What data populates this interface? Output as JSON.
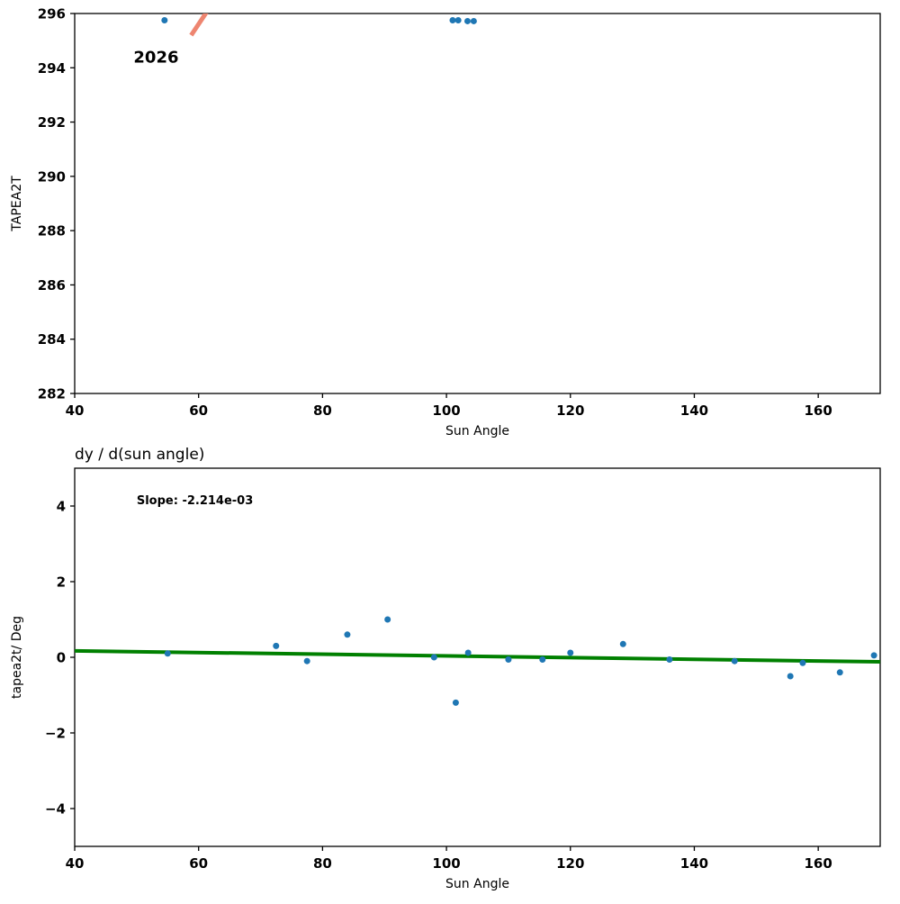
{
  "page": {
    "background": "#ffffff"
  },
  "chart_data": [
    {
      "name": "tapea2t-vs-sun-angle",
      "type": "scatter",
      "title": "",
      "xlabel": "Sun Angle",
      "ylabel": "TAPEA2T",
      "xlim": [
        40,
        170
      ],
      "ylim": [
        282,
        296
      ],
      "xticks": [
        40,
        60,
        80,
        100,
        120,
        140,
        160
      ],
      "yticks": [
        282,
        284,
        286,
        288,
        290,
        292,
        294,
        296
      ],
      "grid": false,
      "marker_color": "#1f77b4",
      "points": {
        "x": [
          54.5,
          101.0,
          101.9,
          103.4,
          104.4
        ],
        "y": [
          295.75,
          295.75,
          295.75,
          295.72,
          295.72
        ]
      },
      "trend_line": {
        "x1": 58.8,
        "y1": 295.2,
        "x2": 62.6,
        "y2": 296.5,
        "color": "#ee8570",
        "width": 5
      },
      "annotations": [
        {
          "text": "2026",
          "x": 49.5,
          "y": 294.2,
          "bold": true,
          "size": 18
        }
      ]
    },
    {
      "name": "derivative",
      "type": "scatter",
      "title": "dy / d(sun angle)",
      "xlabel": "Sun Angle",
      "ylabel": "tapea2t/ Deg",
      "xlim": [
        40,
        170
      ],
      "ylim": [
        -5,
        5
      ],
      "xticks": [
        40,
        60,
        80,
        100,
        120,
        140,
        160
      ],
      "yticks": [
        -4,
        -2,
        0,
        2,
        4
      ],
      "grid": false,
      "marker_color": "#1f77b4",
      "points": {
        "x": [
          55,
          72.5,
          77.5,
          84,
          90.5,
          98,
          101.5,
          103.5,
          110,
          115.5,
          120,
          128.5,
          136,
          146.5,
          155.5,
          157.5,
          163.5,
          169
        ],
        "y": [
          0.1,
          0.3,
          -0.1,
          0.6,
          1.0,
          0.0,
          -1.2,
          0.12,
          -0.06,
          -0.06,
          0.12,
          0.35,
          -0.06,
          -0.1,
          -0.5,
          -0.15,
          -0.4,
          0.05
        ]
      },
      "trend_line": {
        "x1": 40,
        "y1": 0.17,
        "x2": 170,
        "y2": -0.12,
        "color": "#008000",
        "width": 4
      },
      "annotations": [
        {
          "text": "Slope: -2.214e-03",
          "x": 50,
          "y": 4.05,
          "bold": true,
          "size": 13
        }
      ]
    }
  ]
}
